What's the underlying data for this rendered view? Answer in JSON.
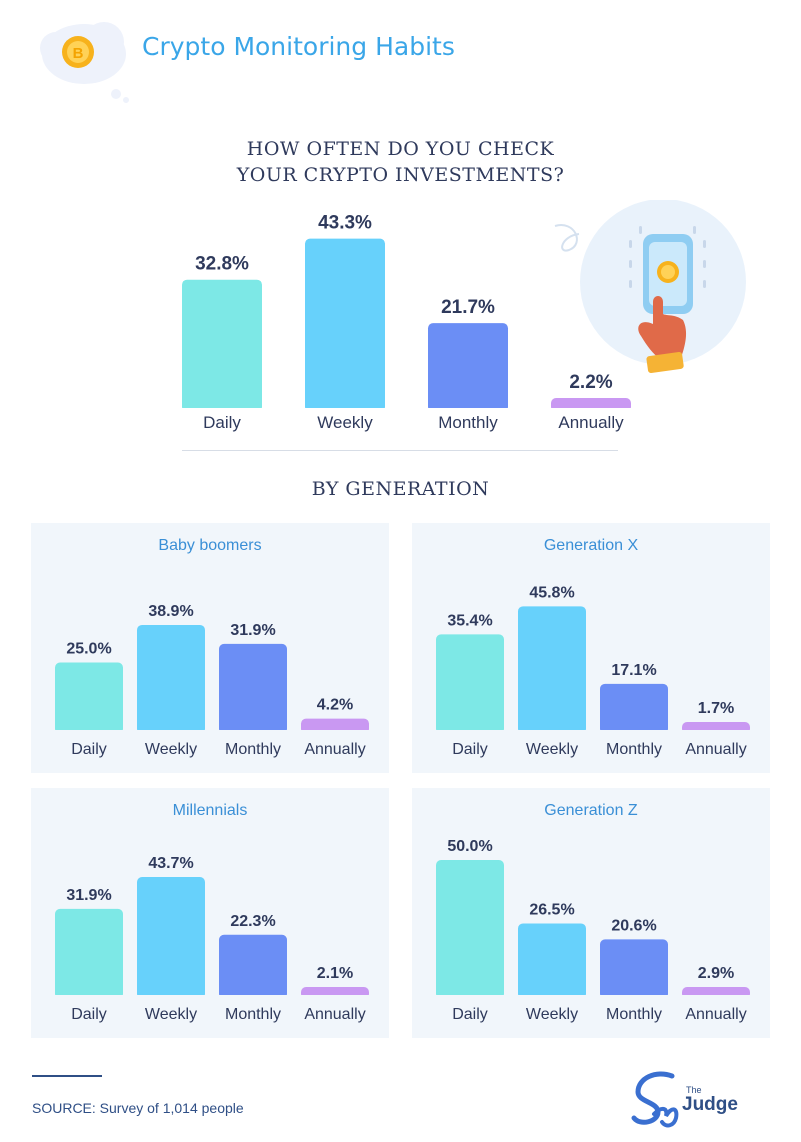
{
  "header": {
    "title": "Crypto Monitoring Habits"
  },
  "main_chart": {
    "title_line1": "HOW OFTEN DO YOU CHECK",
    "title_line2": "YOUR CRYPTO INVESTMENTS?"
  },
  "by_generation": {
    "title": "BY GENERATION"
  },
  "source": {
    "text": "SOURCE: Survey of 1,014 people"
  },
  "logo": {
    "pre": "The",
    "text": "Judge"
  },
  "colors": {
    "daily": "#7de8e6",
    "weekly": "#67d1fb",
    "monthly": "#6b8ef5",
    "annually": "#c998f2",
    "panel_bg": "#f1f6fb",
    "title_blue": "#3aa6e8",
    "text_dark": "#2f3a5c"
  },
  "chart_data": [
    {
      "type": "bar",
      "title": "HOW OFTEN DO YOU CHECK YOUR CRYPTO INVESTMENTS?",
      "categories": [
        "Daily",
        "Weekly",
        "Monthly",
        "Annually"
      ],
      "values": [
        32.8,
        43.3,
        21.7,
        2.2
      ],
      "labels": [
        "32.8%",
        "43.3%",
        "21.7%",
        "2.2%"
      ],
      "unit": "%",
      "ylim": [
        0,
        45
      ]
    },
    {
      "type": "bar",
      "title": "Baby boomers",
      "categories": [
        "Daily",
        "Weekly",
        "Monthly",
        "Annually"
      ],
      "values": [
        25.0,
        38.9,
        31.9,
        4.2
      ],
      "labels": [
        "25.0%",
        "38.9%",
        "31.9%",
        "4.2%"
      ],
      "unit": "%",
      "ylim": [
        0,
        50
      ]
    },
    {
      "type": "bar",
      "title": "Generation X",
      "categories": [
        "Daily",
        "Weekly",
        "Monthly",
        "Annually"
      ],
      "values": [
        35.4,
        45.8,
        17.1,
        1.7
      ],
      "labels": [
        "35.4%",
        "45.8%",
        "17.1%",
        "1.7%"
      ],
      "unit": "%",
      "ylim": [
        0,
        50
      ]
    },
    {
      "type": "bar",
      "title": "Millennials",
      "categories": [
        "Daily",
        "Weekly",
        "Monthly",
        "Annually"
      ],
      "values": [
        31.9,
        43.7,
        22.3,
        2.1
      ],
      "labels": [
        "31.9%",
        "43.7%",
        "22.3%",
        "2.1%"
      ],
      "unit": "%",
      "ylim": [
        0,
        50
      ]
    },
    {
      "type": "bar",
      "title": "Generation Z",
      "categories": [
        "Daily",
        "Weekly",
        "Monthly",
        "Annually"
      ],
      "values": [
        50.0,
        26.5,
        20.6,
        2.9
      ],
      "labels": [
        "50.0%",
        "26.5%",
        "20.6%",
        "2.9%"
      ],
      "unit": "%",
      "ylim": [
        0,
        50
      ]
    }
  ]
}
